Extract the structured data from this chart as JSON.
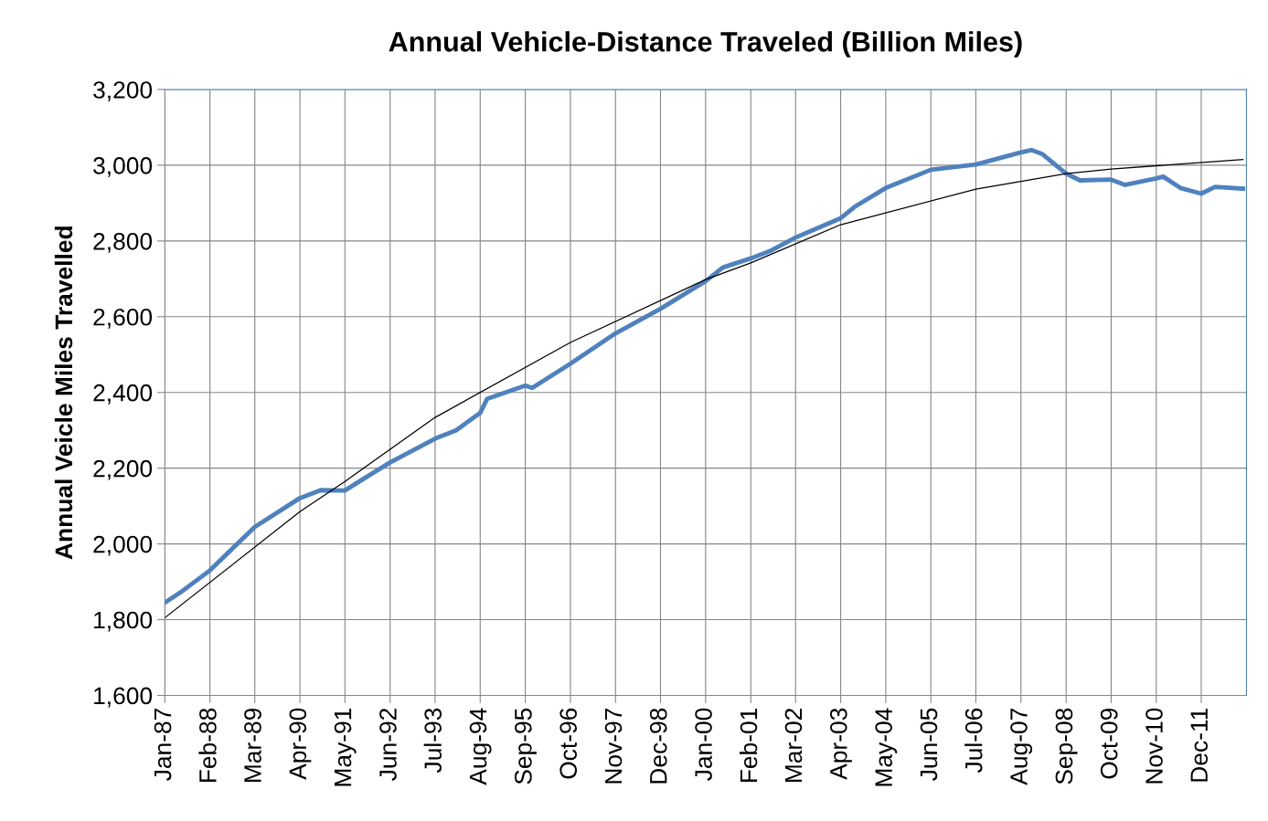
{
  "chart_data": {
    "type": "line",
    "title": "Annual Vehicle-Distance Traveled (Billion Miles)",
    "ylabel": "Annual Veicle Miles Travelled",
    "ylim": [
      1600,
      3200
    ],
    "yticks": [
      {
        "value": 1600,
        "label": "1,600"
      },
      {
        "value": 1800,
        "label": "1,800"
      },
      {
        "value": 2000,
        "label": "2,000"
      },
      {
        "value": 2200,
        "label": "2,200"
      },
      {
        "value": 2400,
        "label": "2,400"
      },
      {
        "value": 2600,
        "label": "2,600"
      },
      {
        "value": 2800,
        "label": "2,800"
      },
      {
        "value": 3000,
        "label": "3,000"
      },
      {
        "value": 3200,
        "label": "3,200"
      }
    ],
    "xlim": [
      "1987-01",
      "2013-01"
    ],
    "xticks": [
      {
        "value": "1987-01",
        "label": "Jan-87"
      },
      {
        "value": "1988-02",
        "label": "Feb-88"
      },
      {
        "value": "1989-03",
        "label": "Mar-89"
      },
      {
        "value": "1990-04",
        "label": "Apr-90"
      },
      {
        "value": "1991-05",
        "label": "May-91"
      },
      {
        "value": "1992-06",
        "label": "Jun-92"
      },
      {
        "value": "1993-07",
        "label": "Jul-93"
      },
      {
        "value": "1994-08",
        "label": "Aug-94"
      },
      {
        "value": "1995-09",
        "label": "Sep-95"
      },
      {
        "value": "1996-10",
        "label": "Oct-96"
      },
      {
        "value": "1997-11",
        "label": "Nov-97"
      },
      {
        "value": "1998-12",
        "label": "Dec-98"
      },
      {
        "value": "2000-01",
        "label": "Jan-00"
      },
      {
        "value": "2001-02",
        "label": "Feb-01"
      },
      {
        "value": "2002-03",
        "label": "Mar-02"
      },
      {
        "value": "2003-04",
        "label": "Apr-03"
      },
      {
        "value": "2004-05",
        "label": "May-04"
      },
      {
        "value": "2005-06",
        "label": "Jun-05"
      },
      {
        "value": "2006-07",
        "label": "Jul-06"
      },
      {
        "value": "2007-08",
        "label": "Aug-07"
      },
      {
        "value": "2008-09",
        "label": "Sep-08"
      },
      {
        "value": "2009-10",
        "label": "Oct-09"
      },
      {
        "value": "2010-11",
        "label": "Nov-10"
      },
      {
        "value": "2011-12",
        "label": "Dec-11"
      }
    ],
    "grid": true,
    "legend": false,
    "series": [
      {
        "color": "#4f81bd",
        "x": [
          "1987-01",
          "1987-06",
          "1988-02",
          "1989-03",
          "1990-04",
          "1990-10",
          "1991-05",
          "1991-10",
          "1992-06",
          "1993-07",
          "1994-01",
          "1994-08",
          "1994-10",
          "1995-09",
          "1995-11",
          "1996-10",
          "1997-11",
          "1998-12",
          "2000-01",
          "2000-06",
          "2001-02",
          "2001-08",
          "2002-03",
          "2003-04",
          "2003-08",
          "2004-05",
          "2005-06",
          "2006-07",
          "2007-08",
          "2007-11",
          "2008-02",
          "2008-09",
          "2009-01",
          "2009-10",
          "2010-02",
          "2010-11",
          "2011-01",
          "2011-06",
          "2011-12",
          "2012-04",
          "2012-12"
        ],
        "values": [
          1845,
          1875,
          1930,
          2045,
          2121,
          2142,
          2141,
          2170,
          2215,
          2278,
          2300,
          2346,
          2383,
          2418,
          2412,
          2476,
          2556,
          2621,
          2694,
          2730,
          2754,
          2775,
          2809,
          2860,
          2890,
          2940,
          2988,
          3002,
          3034,
          3040,
          3030,
          2978,
          2960,
          2962,
          2948,
          2965,
          2970,
          2940,
          2925,
          2943,
          2938
        ]
      },
      {
        "color": "#000000",
        "x": [
          "1987-01",
          "1990-04",
          "1991-05",
          "1993-07",
          "1996-10",
          "2000-01",
          "2001-02",
          "2003-04",
          "2006-07",
          "2008-09",
          "2009-10",
          "2012-12"
        ],
        "values": [
          1805,
          2085,
          2165,
          2334,
          2532,
          2698,
          2742,
          2843,
          2937,
          2978,
          2990,
          3015
        ]
      }
    ]
  }
}
